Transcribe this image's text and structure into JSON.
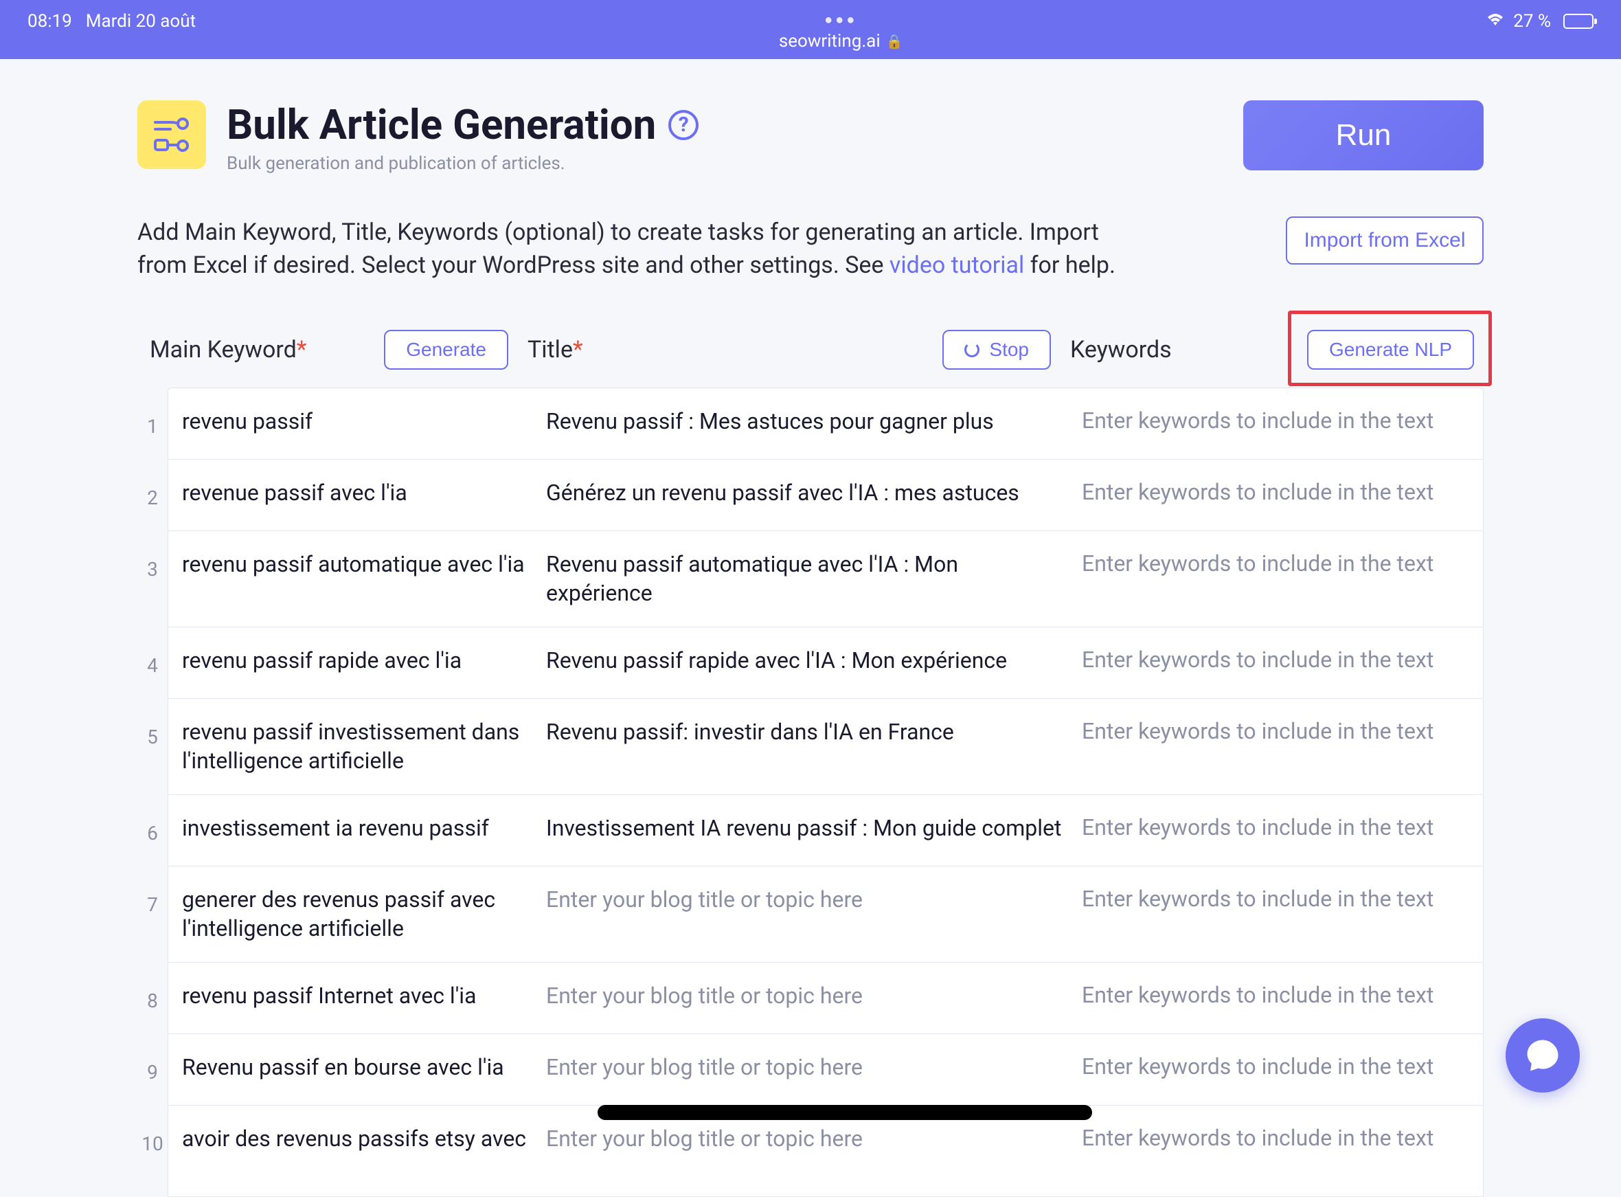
{
  "statusbar": {
    "time": "08:19",
    "date": "Mardi 20 août",
    "url": "seowriting.ai",
    "battery_pct": "27 %",
    "battery_fill": 27
  },
  "header": {
    "title": "Bulk Article Generation",
    "subtitle": "Bulk generation and publication of articles.",
    "run_label": "Run"
  },
  "description": {
    "text_before": "Add Main Keyword, Title, Keywords (optional) to create tasks for generating an article. Import from Excel if desired. Select your WordPress site and other settings. See ",
    "link_text": "video tutorial",
    "text_after": " for help.",
    "import_label": "Import from Excel"
  },
  "columns": {
    "main_keyword": "Main Keyword",
    "title": "Title",
    "keywords": "Keywords",
    "generate_btn": "Generate",
    "stop_btn": "Stop",
    "nlp_btn": "Generate NLP"
  },
  "placeholders": {
    "title": "Enter your blog title or topic here",
    "keywords": "Enter keywords to include in the text"
  },
  "rows": [
    {
      "n": "1",
      "kw": "revenu passif",
      "title": "Revenu passif : Mes astuces pour gagner plus",
      "has_title": true,
      "tall": false
    },
    {
      "n": "2",
      "kw": "revenue passif avec l'ia",
      "title": "Générez un revenu passif avec l'IA : mes astuces",
      "has_title": true,
      "tall": false
    },
    {
      "n": "3",
      "kw": "revenu passif automatique avec l'ia",
      "title": "Revenu passif automatique avec l'IA : Mon expérience",
      "has_title": true,
      "tall": true
    },
    {
      "n": "4",
      "kw": "revenu passif rapide avec l'ia",
      "title": "Revenu passif rapide avec l'IA : Mon expérience",
      "has_title": true,
      "tall": false
    },
    {
      "n": "5",
      "kw": "revenu passif investissement dans l'intelligence artificielle",
      "title": "Revenu passif: investir dans l'IA en France",
      "has_title": true,
      "tall": true
    },
    {
      "n": "6",
      "kw": "investissement ia revenu passif",
      "title": "Investissement IA revenu passif : Mon guide complet",
      "has_title": true,
      "tall": false
    },
    {
      "n": "7",
      "kw": "generer des revenus passif avec l'intelligence artificielle",
      "title": "",
      "has_title": false,
      "tall": true
    },
    {
      "n": "8",
      "kw": "revenu passif Internet avec l'ia",
      "title": "",
      "has_title": false,
      "tall": false
    },
    {
      "n": "9",
      "kw": "Revenu passif en bourse avec l'ia",
      "title": "",
      "has_title": false,
      "tall": false
    },
    {
      "n": "10",
      "kw": "avoir des revenus passifs etsy avec",
      "title": "",
      "has_title": false,
      "tall": false
    }
  ],
  "colors": {
    "primary": "#6b6ff0",
    "statusbar_bg": "#6b6ff0",
    "page_icon_bg": "#ffe86b",
    "highlight_red": "#e63946",
    "text_dark": "#1a1a2e",
    "text_muted": "#8b8fa3",
    "border": "#e4e6ef",
    "required": "#e74c3c"
  }
}
